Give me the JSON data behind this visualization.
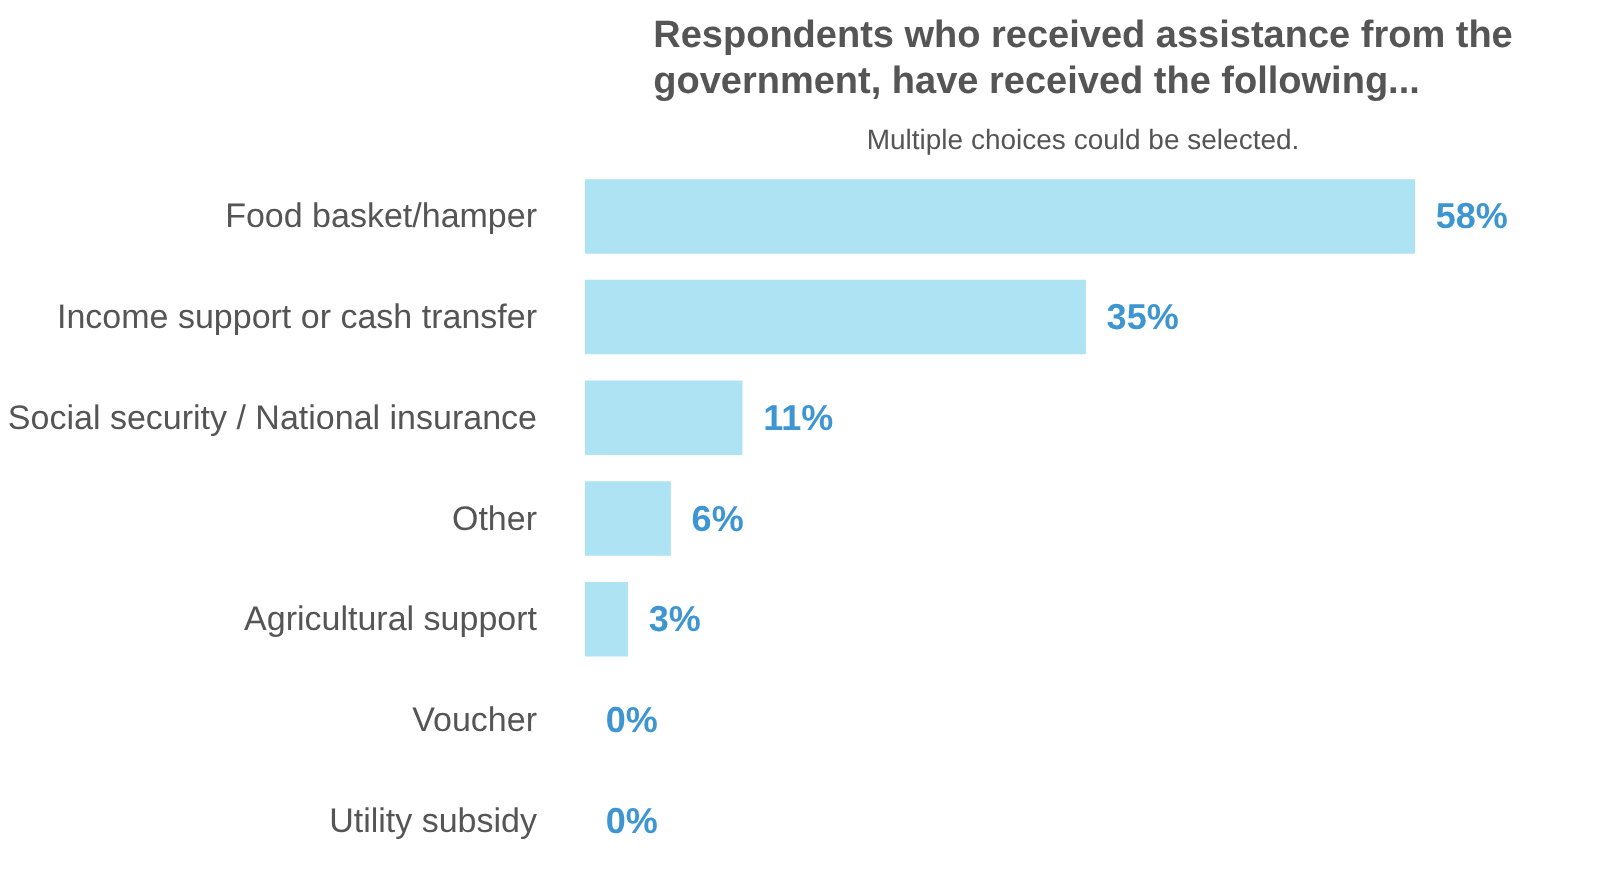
{
  "chart_data": {
    "type": "bar",
    "orientation": "horizontal",
    "title": "Respondents who received assistance from the government, have received the following...",
    "subtitle": "Multiple choices could be selected.",
    "categories": [
      "Food basket/hamper",
      "Income support or cash transfer",
      "Social security / National insurance",
      "Other",
      "Agricultural support",
      "Voucher",
      "Utility subsidy"
    ],
    "values": [
      58,
      35,
      11,
      6,
      3,
      0,
      0
    ],
    "value_labels": [
      "58%",
      "35%",
      "11%",
      "6%",
      "3%",
      "0%",
      "0%"
    ],
    "color": "#ade3f3",
    "grid": false
  }
}
